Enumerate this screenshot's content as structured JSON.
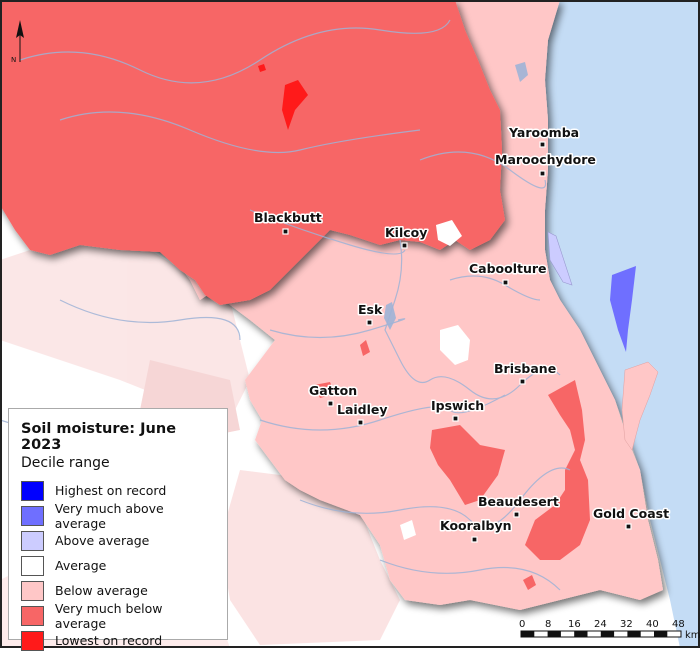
{
  "legend": {
    "title": "Soil moisture: June 2023",
    "subtitle": "Decile range",
    "items": [
      {
        "label": "Highest on record",
        "color": "#0000ff"
      },
      {
        "label": "Very much above average",
        "color": "#6f6fff"
      },
      {
        "label": "Above average",
        "color": "#ccccff"
      },
      {
        "label": "Average",
        "color": "#ffffff"
      },
      {
        "label": "Below average",
        "color": "#ffc7c7"
      },
      {
        "label": "Very much below average",
        "color": "#f76666"
      },
      {
        "label": "Lowest on record",
        "color": "#ff1a1a"
      }
    ]
  },
  "places": [
    {
      "name": "Yaroomba"
    },
    {
      "name": "Maroochydore"
    },
    {
      "name": "Blackbutt"
    },
    {
      "name": "Kilcoy"
    },
    {
      "name": "Caboolture"
    },
    {
      "name": "Esk"
    },
    {
      "name": "Brisbane"
    },
    {
      "name": "Gatton"
    },
    {
      "name": "Laidley"
    },
    {
      "name": "Ipswich"
    },
    {
      "name": "Beaudesert"
    },
    {
      "name": "Gold Coast"
    },
    {
      "name": "Kooralbyn"
    }
  ],
  "north_arrow": {
    "label": "N"
  },
  "scale_bar": {
    "ticks": [
      "0",
      "8",
      "16",
      "24",
      "32",
      "40",
      "48"
    ],
    "unit": "km"
  },
  "colors": {
    "sea": "#c4dcf5",
    "land_outside": "#ffffff",
    "river": "#9fb3d6"
  }
}
